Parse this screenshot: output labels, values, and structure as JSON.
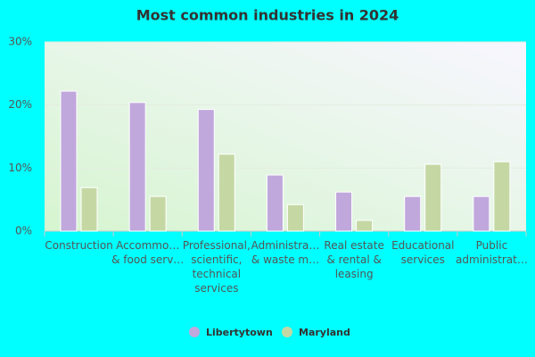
{
  "chart_data": {
    "type": "bar",
    "title": "Most common industries in 2024",
    "categories": [
      "Construction",
      "Accommo…\n& food serv…",
      "Professional,\nscientific,\ntechnical\nservices",
      "Administra…\n& waste m…",
      "Real estate\n& rental &\nleasing",
      "Educational\nservices",
      "Public\nadministrat…"
    ],
    "series": [
      {
        "name": "Libertytown",
        "color": "#c0a8dc",
        "values": [
          22.2,
          20.4,
          19.3,
          8.9,
          6.2,
          5.5,
          5.5
        ]
      },
      {
        "name": "Maryland",
        "color": "#c5d8a4",
        "values": [
          6.9,
          5.5,
          12.2,
          4.2,
          1.7,
          10.6,
          11.0
        ]
      }
    ],
    "ylim": [
      0,
      30
    ],
    "yticks": [
      {
        "value": 0,
        "label": "0%"
      },
      {
        "value": 10,
        "label": "10%"
      },
      {
        "value": 20,
        "label": "20%"
      },
      {
        "value": 30,
        "label": "30%"
      }
    ],
    "grid": true,
    "legend": "bottom"
  }
}
